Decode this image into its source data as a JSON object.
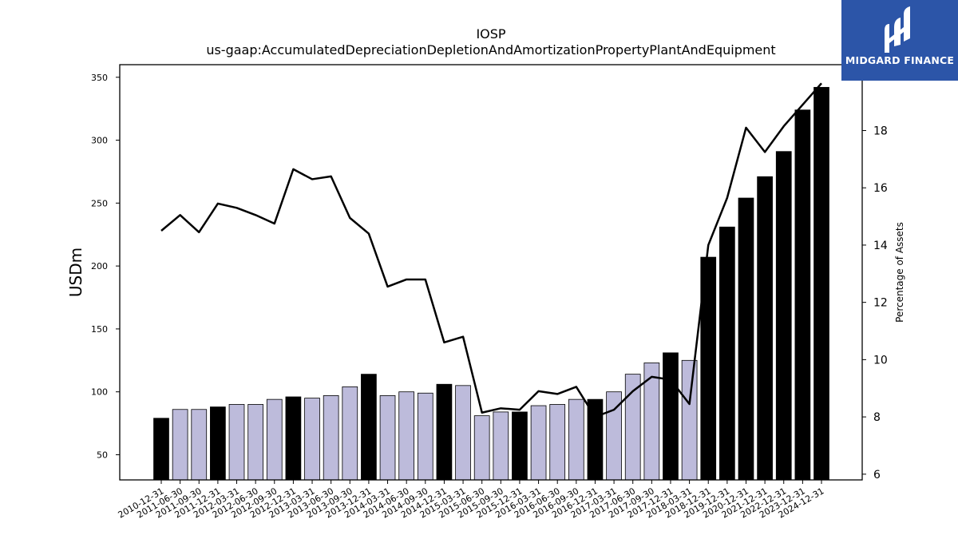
{
  "chart_data": {
    "type": "bar",
    "title": "IOSP",
    "subtitle": "us-gaap:AccumulatedDepreciationDepletionAndAmortizationPropertyPlantAndEquipment",
    "ylabel": "USDm",
    "y2label": "Percentage of Assets",
    "ylim": [
      30,
      360
    ],
    "y2lim": [
      5.8,
      20.3
    ],
    "yticks": [
      50,
      100,
      150,
      200,
      250,
      300,
      350
    ],
    "y2ticks": [
      6,
      8,
      10,
      12,
      14,
      16,
      18
    ],
    "categories": [
      "2010-12-31",
      "2011-06-30",
      "2011-09-30",
      "2011-12-31",
      "2012-03-31",
      "2012-06-30",
      "2012-09-30",
      "2012-12-31",
      "2013-03-31",
      "2013-06-30",
      "2013-09-30",
      "2013-12-31",
      "2014-03-31",
      "2014-06-30",
      "2014-09-30",
      "2014-12-31",
      "2015-03-31",
      "2015-06-30",
      "2015-09-30",
      "2015-12-31",
      "2016-03-31",
      "2016-06-30",
      "2016-09-30",
      "2016-12-31",
      "2017-03-31",
      "2017-06-30",
      "2017-09-30",
      "2017-12-31",
      "2018-03-31",
      "2018-12-31",
      "2019-12-31",
      "2020-12-31",
      "2021-12-31",
      "2022-12-31",
      "2023-12-31",
      "2024-12-31"
    ],
    "series": [
      {
        "type": "bar",
        "values": [
          79,
          86,
          86,
          88,
          90,
          90,
          94,
          96,
          95,
          97,
          104,
          114,
          97,
          100,
          99,
          106,
          105,
          81,
          84,
          84,
          89,
          90,
          94,
          94,
          100,
          114,
          123,
          131,
          125,
          207,
          231,
          254,
          271,
          291,
          324,
          342
        ],
        "annual": [
          1,
          0,
          0,
          1,
          0,
          0,
          0,
          1,
          0,
          0,
          0,
          1,
          0,
          0,
          0,
          1,
          0,
          0,
          0,
          1,
          0,
          0,
          0,
          1,
          0,
          0,
          0,
          1,
          0,
          1,
          1,
          1,
          1,
          1,
          1,
          1
        ]
      },
      {
        "type": "line",
        "axis": "right",
        "values": [
          14.5,
          15.05,
          14.45,
          15.45,
          15.3,
          15.05,
          14.75,
          16.65,
          16.3,
          16.4,
          14.95,
          14.4,
          12.55,
          12.8,
          12.8,
          10.6,
          10.8,
          8.15,
          8.3,
          8.25,
          8.9,
          8.8,
          9.05,
          8.0,
          8.25,
          8.9,
          9.4,
          9.3,
          8.45,
          14.0,
          15.65,
          18.1,
          17.25,
          18.15,
          18.9,
          19.65
        ]
      }
    ],
    "colors": {
      "annual_bar": "#000000",
      "quarter_bar": "#bdbbdb",
      "line": "#000000"
    },
    "grid": false
  },
  "logo": {
    "text": "MIDGARD FINANCE"
  }
}
